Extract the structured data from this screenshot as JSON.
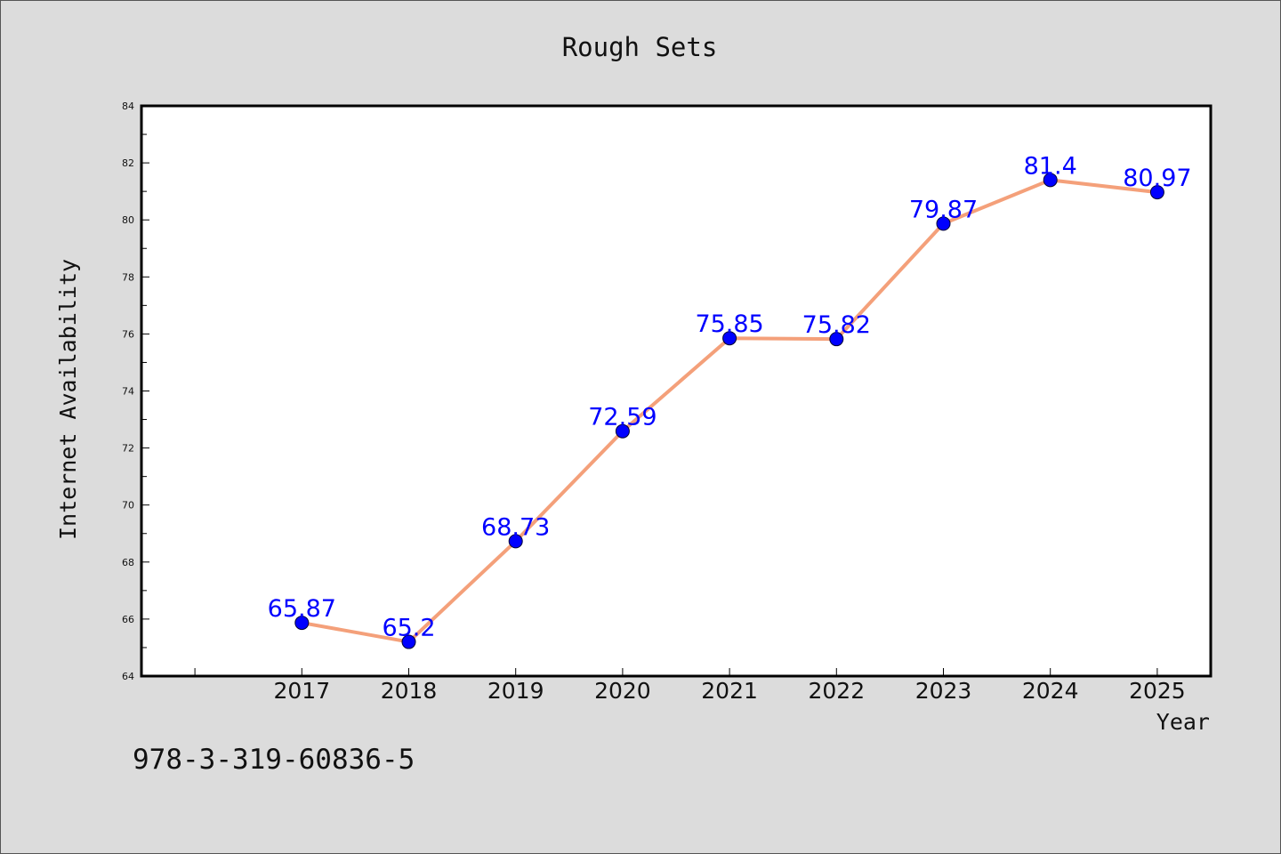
{
  "chart_data": {
    "type": "line",
    "title": "Rough Sets",
    "xlabel": "Year",
    "ylabel": "Internet Availability",
    "categories": [
      "2017",
      "2018",
      "2019",
      "2020",
      "2021",
      "2022",
      "2023",
      "2024",
      "2025"
    ],
    "series": [
      {
        "values": [
          65.87,
          65.2,
          68.73,
          72.59,
          75.85,
          75.82,
          79.87,
          81.4,
          80.97
        ],
        "labels": [
          "65.87",
          "65.2",
          "68.73",
          "72.59",
          "75.85",
          "75.82",
          "79.87",
          "81.4",
          "80.97"
        ]
      }
    ],
    "ylim": [
      64,
      84
    ],
    "yticks": [
      "64",
      "66",
      "68",
      "70",
      "72",
      "74",
      "76",
      "78",
      "80",
      "82",
      "84"
    ],
    "x_range": [
      2015.5,
      2025.5
    ],
    "grid": false,
    "line_color": "#f4a07a",
    "marker_color": "#0000ff",
    "label_color": "#0000ff"
  },
  "footer": {
    "isbn": "978-3-319-60836-5"
  }
}
